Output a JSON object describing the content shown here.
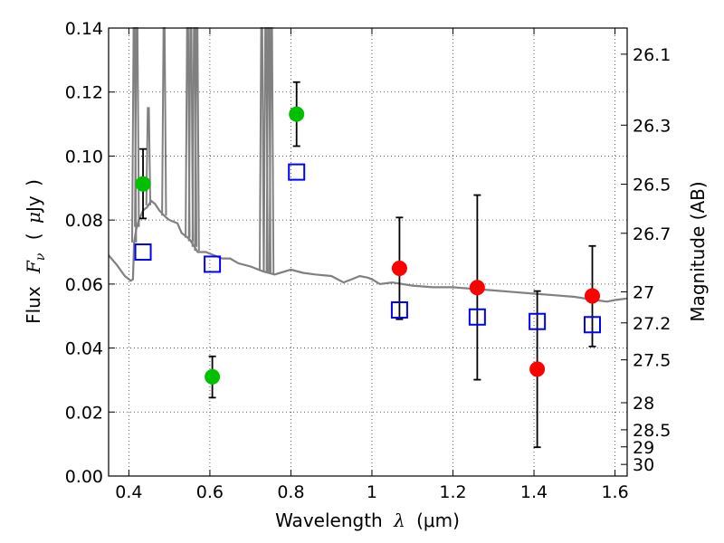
{
  "chart_data": {
    "type": "scatter",
    "xlabel": {
      "prefix": "Wavelength",
      "symbol": "λ",
      "unit": "(μm)"
    },
    "ylabel": {
      "prefix": "Flux",
      "symbol": "F",
      "subscript": "ν",
      "unit_open": "(",
      "unit_symbol": "μ",
      "unit_rest": "Jy",
      "unit_close": ")"
    },
    "y2label": "Magnitude (AB)",
    "xlim": [
      0.35,
      1.63
    ],
    "ylim": [
      0.0,
      0.14
    ],
    "grid": true,
    "x_ticks": [
      {
        "value": 0.4,
        "label": "0.4"
      },
      {
        "value": 0.6,
        "label": "0.6"
      },
      {
        "value": 0.8,
        "label": "0.8"
      },
      {
        "value": 1.0,
        "label": "1"
      },
      {
        "value": 1.2,
        "label": "1.2"
      },
      {
        "value": 1.4,
        "label": "1.4"
      },
      {
        "value": 1.6,
        "label": "1.6"
      }
    ],
    "y_ticks": [
      {
        "value": 0.0,
        "label": "0.00"
      },
      {
        "value": 0.02,
        "label": "0.02"
      },
      {
        "value": 0.04,
        "label": "0.04"
      },
      {
        "value": 0.06,
        "label": "0.06"
      },
      {
        "value": 0.08,
        "label": "0.08"
      },
      {
        "value": 0.1,
        "label": "0.10"
      },
      {
        "value": 0.12,
        "label": "0.12"
      },
      {
        "value": 0.14,
        "label": "0.14"
      }
    ],
    "y2_ticks": [
      {
        "value": 26.1,
        "label": "26.1"
      },
      {
        "value": 26.3,
        "label": "26.3"
      },
      {
        "value": 26.5,
        "label": "26.5"
      },
      {
        "value": 26.7,
        "label": "26.7"
      },
      {
        "value": 27.0,
        "label": "27"
      },
      {
        "value": 27.2,
        "label": "27.2"
      },
      {
        "value": 27.5,
        "label": "27.5"
      },
      {
        "value": 28.0,
        "label": "28"
      },
      {
        "value": 28.5,
        "label": "28.5"
      },
      {
        "value": 29.0,
        "label": "29"
      },
      {
        "value": 30.0,
        "label": "30"
      }
    ],
    "series": [
      {
        "marker": "circle",
        "color": "#00c000",
        "points": [
          {
            "x": 0.435,
            "y": 0.0913,
            "yerr_low": 0.0805,
            "yerr_high": 0.1022
          },
          {
            "x": 0.606,
            "y": 0.031,
            "yerr_low": 0.0245,
            "yerr_high": 0.0374
          },
          {
            "x": 0.814,
            "y": 0.1131,
            "yerr_low": 0.1031,
            "yerr_high": 0.1231
          }
        ]
      },
      {
        "marker": "circle",
        "color": "#ff0000",
        "points": [
          {
            "x": 1.068,
            "y": 0.0649,
            "yerr_low": 0.049,
            "yerr_high": 0.0808
          },
          {
            "x": 1.26,
            "y": 0.0589,
            "yerr_low": 0.0301,
            "yerr_high": 0.0878
          },
          {
            "x": 1.408,
            "y": 0.0334,
            "yerr_low": 0.009,
            "yerr_high": 0.0578
          },
          {
            "x": 1.544,
            "y": 0.0563,
            "yerr_low": 0.0405,
            "yerr_high": 0.0719
          }
        ]
      },
      {
        "marker": "open-square",
        "color": "#0000ff",
        "points": [
          {
            "x": 0.435,
            "y": 0.07
          },
          {
            "x": 0.606,
            "y": 0.0662
          },
          {
            "x": 0.814,
            "y": 0.095
          },
          {
            "x": 1.068,
            "y": 0.0519
          },
          {
            "x": 1.26,
            "y": 0.0497
          },
          {
            "x": 1.408,
            "y": 0.0483
          },
          {
            "x": 1.544,
            "y": 0.0473
          }
        ]
      }
    ],
    "model_curve": {
      "color": "#808080",
      "x": [
        0.35,
        0.37,
        0.39,
        0.405,
        0.41,
        0.413,
        0.418,
        0.425,
        0.435,
        0.445,
        0.455,
        0.465,
        0.475,
        0.49,
        0.5,
        0.52,
        0.53,
        0.55,
        0.56,
        0.57,
        0.59,
        0.61,
        0.63,
        0.65,
        0.67,
        0.7,
        0.73,
        0.76,
        0.8,
        0.83,
        0.86,
        0.9,
        0.93,
        0.95,
        0.97,
        0.99,
        1.0,
        1.02,
        1.05,
        1.1,
        1.15,
        1.2,
        1.25,
        1.3,
        1.35,
        1.4,
        1.45,
        1.5,
        1.55,
        1.58,
        1.6,
        1.63
      ],
      "y": [
        0.069,
        0.066,
        0.0625,
        0.061,
        0.0615,
        0.073,
        0.077,
        0.08,
        0.083,
        0.084,
        0.086,
        0.085,
        0.083,
        0.081,
        0.08,
        0.079,
        0.076,
        0.074,
        0.072,
        0.07,
        0.07,
        0.069,
        0.068,
        0.068,
        0.0665,
        0.0655,
        0.064,
        0.063,
        0.0645,
        0.0635,
        0.063,
        0.0625,
        0.0605,
        0.0615,
        0.0625,
        0.062,
        0.0615,
        0.06,
        0.0605,
        0.0595,
        0.059,
        0.059,
        0.0585,
        0.058,
        0.0575,
        0.057,
        0.0565,
        0.056,
        0.055,
        0.0545,
        0.055,
        0.0555
      ]
    },
    "emission_lines": [
      {
        "x": 0.413,
        "top": 0.14
      },
      {
        "x": 0.42,
        "top": 0.14
      },
      {
        "x": 0.448,
        "top": 0.115
      },
      {
        "x": 0.487,
        "top": 0.14
      },
      {
        "x": 0.545,
        "top": 0.14
      },
      {
        "x": 0.553,
        "top": 0.14
      },
      {
        "x": 0.562,
        "top": 0.14
      },
      {
        "x": 0.568,
        "top": 0.14
      },
      {
        "x": 0.728,
        "top": 0.14
      },
      {
        "x": 0.738,
        "top": 0.14
      },
      {
        "x": 0.745,
        "top": 0.14
      },
      {
        "x": 0.752,
        "top": 0.14
      }
    ]
  }
}
